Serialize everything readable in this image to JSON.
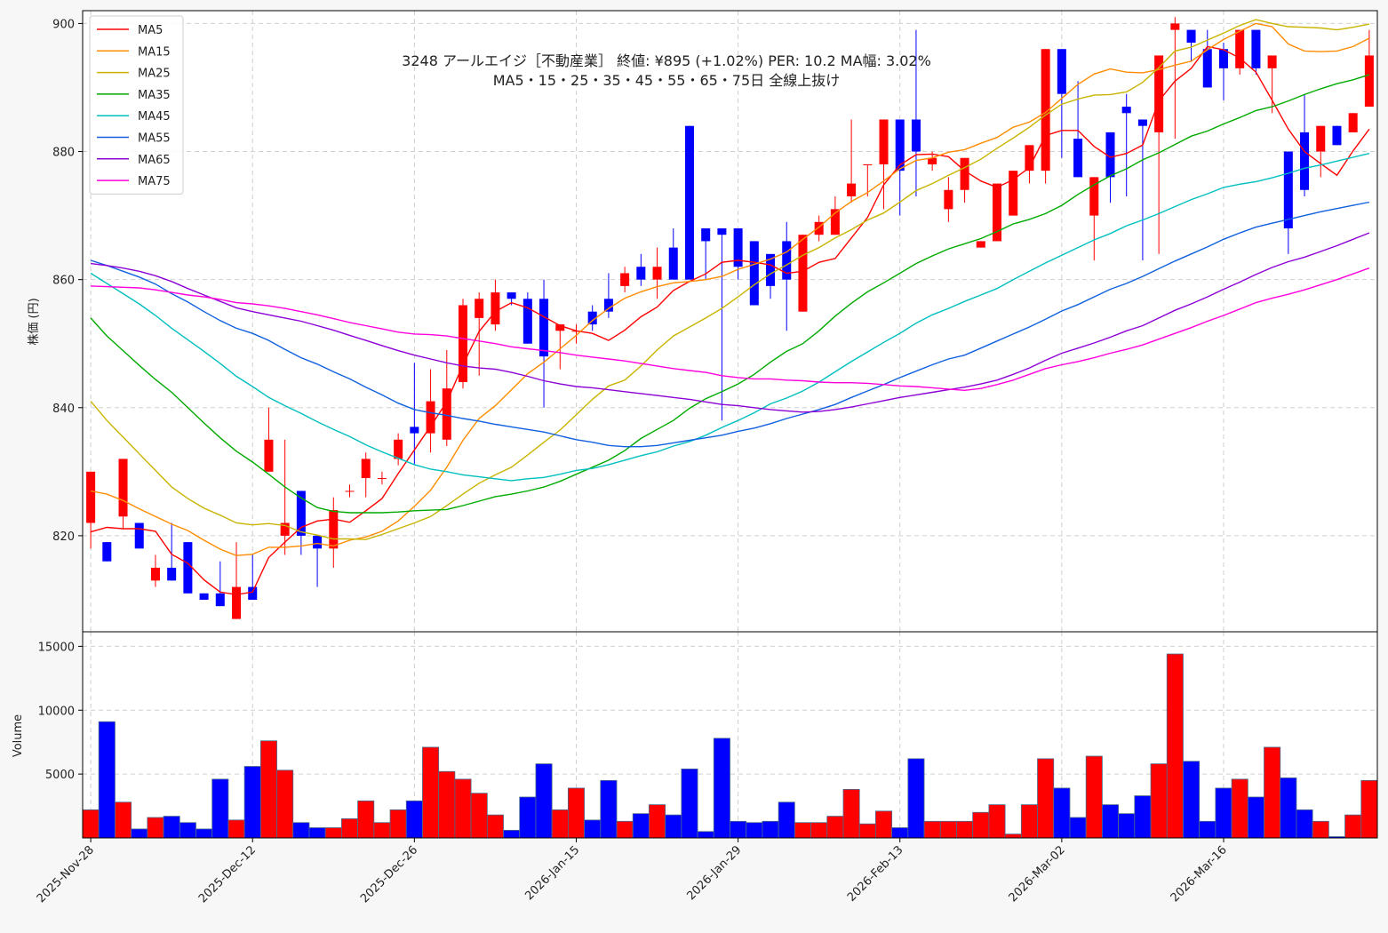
{
  "chart_data": {
    "type": "candlestick",
    "title_line1": "3248  アールエイジ［不動産業］ 終値: ¥895 (+1.02%)  PER: 10.2  MA幅: 3.02%",
    "title_line2": "MA5・15・25・35・45・55・65・75日 全線上抜け",
    "ylabel": "株価 (円)",
    "volume_ylabel": "Volume",
    "price_ylim": [
      805,
      902
    ],
    "price_ticks": [
      820,
      840,
      860,
      880,
      900
    ],
    "volume_ylim": [
      0,
      16000
    ],
    "volume_ticks": [
      5000,
      10000,
      15000
    ],
    "x_tick_labels": [
      {
        "index": 0,
        "label": "2025-Nov-28"
      },
      {
        "index": 10,
        "label": "2025-Dec-12"
      },
      {
        "index": 20,
        "label": "2025-Dec-26"
      },
      {
        "index": 30,
        "label": "2026-Jan-15"
      },
      {
        "index": 40,
        "label": "2026-Jan-29"
      },
      {
        "index": 50,
        "label": "2026-Feb-13"
      },
      {
        "index": 60,
        "label": "2026-Mar-02"
      },
      {
        "index": 70,
        "label": "2026-Mar-16"
      }
    ],
    "grid": true,
    "legend_position": "top-left",
    "up_color": "#ff0000",
    "down_color": "#0000ff",
    "candles": [
      [
        822,
        830,
        818,
        830
      ],
      [
        819,
        819,
        816,
        816
      ],
      [
        823,
        832,
        821,
        832
      ],
      [
        822,
        822,
        818,
        818
      ],
      [
        813,
        817,
        812,
        815
      ],
      [
        815,
        822,
        813,
        813
      ],
      [
        819,
        819,
        811,
        811
      ],
      [
        811,
        811,
        810,
        810
      ],
      [
        811,
        816,
        809,
        809
      ],
      [
        807,
        819,
        807,
        812
      ],
      [
        812,
        817,
        810,
        810
      ],
      [
        830,
        840,
        830,
        835
      ],
      [
        820,
        835,
        817,
        822
      ],
      [
        827,
        827,
        817,
        820
      ],
      [
        820,
        820,
        812,
        818
      ],
      [
        818,
        826,
        815,
        824
      ],
      [
        827,
        828,
        826,
        827
      ],
      [
        829,
        833,
        826,
        832
      ],
      [
        829,
        830,
        828,
        829
      ],
      [
        832,
        836,
        831,
        835
      ],
      [
        837,
        847,
        831,
        836
      ],
      [
        836,
        846,
        833,
        841
      ],
      [
        835,
        849,
        834,
        843
      ],
      [
        844,
        857,
        843,
        856
      ],
      [
        854,
        858,
        845,
        857
      ],
      [
        853,
        860,
        852,
        858
      ],
      [
        858,
        858,
        856,
        857
      ],
      [
        857,
        858,
        850,
        850
      ],
      [
        857,
        860,
        840,
        848
      ],
      [
        852,
        853,
        846,
        853
      ],
      [
        852,
        853,
        850,
        852
      ],
      [
        855,
        856,
        852,
        853
      ],
      [
        857,
        861,
        854,
        855
      ],
      [
        859,
        862,
        858,
        861
      ],
      [
        862,
        864,
        859,
        860
      ],
      [
        860,
        865,
        857,
        862
      ],
      [
        865,
        868,
        860,
        860
      ],
      [
        884,
        884,
        860,
        860
      ],
      [
        868,
        868,
        860,
        866
      ],
      [
        868,
        868,
        838,
        867
      ],
      [
        868,
        868,
        860,
        862
      ],
      [
        866,
        866,
        856,
        856
      ],
      [
        864,
        864,
        857,
        859
      ],
      [
        866,
        869,
        852,
        860
      ],
      [
        855,
        867,
        855,
        867
      ],
      [
        867,
        870,
        866,
        869
      ],
      [
        867,
        873,
        867,
        871
      ],
      [
        873,
        885,
        872,
        875
      ],
      [
        878,
        878,
        873,
        878
      ],
      [
        878,
        885,
        871,
        885
      ],
      [
        885,
        885,
        870,
        877
      ],
      [
        885,
        899,
        873,
        880
      ],
      [
        878,
        880,
        877,
        879
      ],
      [
        871,
        876,
        869,
        874
      ],
      [
        874,
        879,
        872,
        879
      ],
      [
        865,
        866,
        865,
        866
      ],
      [
        866,
        875,
        866,
        875
      ],
      [
        870,
        877,
        870,
        877
      ],
      [
        877,
        881,
        875,
        881
      ],
      [
        877,
        896,
        875,
        896
      ],
      [
        896,
        896,
        879,
        889
      ],
      [
        882,
        891,
        876,
        876
      ],
      [
        870,
        876,
        863,
        876
      ],
      [
        883,
        883,
        872,
        876
      ],
      [
        887,
        889,
        873,
        886
      ],
      [
        885,
        885,
        863,
        884
      ],
      [
        883,
        895,
        864,
        895
      ],
      [
        899,
        901,
        882,
        900
      ],
      [
        899,
        899,
        894,
        897
      ],
      [
        896,
        899,
        890,
        890
      ],
      [
        896,
        897,
        888,
        893
      ],
      [
        893,
        899,
        892,
        899
      ],
      [
        899,
        899,
        892,
        893
      ],
      [
        893,
        895,
        886,
        895
      ],
      [
        880,
        880,
        864,
        868
      ],
      [
        883,
        889,
        873,
        874
      ],
      [
        880,
        884,
        876,
        884
      ],
      [
        884,
        884,
        881,
        881
      ],
      [
        883,
        886,
        883,
        886
      ],
      [
        887,
        899,
        887,
        895
      ]
    ],
    "volume": [
      2200,
      9100,
      2800,
      700,
      1600,
      1700,
      1200,
      700,
      4600,
      1400,
      5600,
      7600,
      5300,
      1200,
      800,
      800,
      1500,
      2900,
      1200,
      2200,
      2900,
      7100,
      5200,
      4600,
      3500,
      1800,
      600,
      3200,
      5800,
      2200,
      3900,
      1400,
      4500,
      1300,
      1900,
      2600,
      1800,
      5400,
      500,
      7800,
      1300,
      1200,
      1300,
      2800,
      1200,
      1200,
      1700,
      3800,
      1100,
      2100,
      800,
      6200,
      1300,
      1300,
      1300,
      2000,
      2600,
      300,
      2600,
      6200,
      3900,
      1600,
      6400,
      2600,
      1900,
      3300,
      5800,
      14400,
      6000,
      1300,
      3900,
      4600,
      3200,
      7100,
      4700,
      2200,
      1300,
      100,
      1800,
      4500
    ],
    "series": [
      {
        "name": "MA5",
        "color": "#ff0000",
        "values": [
          820.6,
          821.3,
          821.1,
          821.1,
          820.7,
          817.1,
          815.7,
          813.1,
          811.2,
          810.8,
          811.2,
          816.6,
          819.0,
          821.3,
          822.3,
          822.6,
          822.1,
          823.9,
          825.8,
          829.7,
          833.4,
          837.1,
          840.9,
          846.7,
          851.9,
          855.0,
          856.4,
          855.6,
          854.2,
          852.8,
          852.0,
          851.6,
          850.5,
          852.1,
          854.2,
          855.7,
          858.3,
          859.7,
          860.9,
          862.7,
          863.0,
          862.7,
          862.3,
          861.0,
          861.3,
          862.7,
          863.3,
          866.5,
          869.7,
          874.8,
          877.9,
          879.5,
          879.6,
          879.2,
          877.0,
          875.4,
          874.4,
          875.6,
          877.5,
          882.5,
          883.3,
          883.3,
          880.8,
          879.1,
          879.7,
          881.0,
          887.9,
          891.0,
          893.0,
          896.4,
          895.9,
          894.6,
          892.4,
          888.0,
          883.5,
          880.0,
          878.1,
          876.3,
          880.1,
          883.5
        ]
      },
      {
        "name": "MA15",
        "color": "#ff8c00",
        "values": [
          827,
          826.5,
          825.5,
          824.2,
          823,
          821.8,
          820.8,
          819.3,
          817.9,
          816.9,
          817.1,
          818.2,
          818.2,
          818.4,
          818.8,
          818.4,
          819.3,
          819.8,
          820.7,
          822.3,
          824.6,
          827.1,
          830.7,
          834.9,
          838.3,
          840.3,
          842.8,
          845.3,
          847.1,
          849.2,
          851.3,
          853.6,
          855.5,
          857.1,
          858.1,
          858.9,
          859.5,
          859.7,
          860.0,
          860.5,
          861.6,
          862.4,
          863.2,
          864.3,
          866.3,
          868.2,
          870.4,
          872.2,
          873.6,
          875.4,
          877.3,
          878.6,
          879.0,
          879.9,
          880.3,
          881.3,
          882.2,
          883.8,
          884.6,
          886.1,
          888.3,
          890.5,
          892.1,
          892.9,
          892.4,
          892.3,
          892.8,
          893.5,
          894.1,
          895.9,
          897.5,
          898.8,
          900.0,
          899.5,
          896.8,
          895.7,
          895.6,
          895.7,
          896.4,
          897.7
        ]
      },
      {
        "name": "MA25",
        "color": "#c8b400",
        "values": [
          841,
          838.0,
          835.4,
          832.8,
          830.2,
          827.6,
          825.8,
          824.3,
          823.2,
          822.0,
          821.7,
          821.9,
          821.6,
          820.6,
          820.1,
          819.5,
          819.5,
          819.4,
          820.2,
          821.1,
          822.0,
          823.0,
          824.7,
          826.5,
          828.2,
          829.5,
          830.7,
          832.6,
          834.6,
          836.5,
          838.9,
          841.3,
          843.4,
          844.3,
          846.5,
          849.0,
          851.2,
          852.6,
          854.0,
          855.5,
          857.3,
          859.2,
          860.9,
          862.3,
          863.8,
          865.0,
          866.5,
          867.8,
          869.3,
          870.4,
          872.1,
          873.9,
          875.0,
          876.3,
          877.5,
          878.8,
          880.5,
          882.1,
          883.8,
          885.7,
          887.4,
          888.2,
          888.8,
          888.9,
          889.3,
          890.8,
          893.1,
          895.7,
          896.3,
          897.4,
          898.5,
          899.7,
          900.6,
          900.0,
          899.5,
          899.4,
          899.3,
          899.0,
          899.4,
          899.9
        ]
      },
      {
        "name": "MA35",
        "color": "#00aa00",
        "values": [
          854,
          851.2,
          848.9,
          846.6,
          844.4,
          842.4,
          840.0,
          837.6,
          835.3,
          833.2,
          831.5,
          829.6,
          827.6,
          825.9,
          824.4,
          823.8,
          823.6,
          823.6,
          823.6,
          823.7,
          823.9,
          824.0,
          824.1,
          824.7,
          825.4,
          826.1,
          826.5,
          827.0,
          827.6,
          828.5,
          829.6,
          830.7,
          831.8,
          833.3,
          835.2,
          836.6,
          838.0,
          839.9,
          841.4,
          842.5,
          843.7,
          845.2,
          847.1,
          848.8,
          850.0,
          852.0,
          854.3,
          856.3,
          858.1,
          859.5,
          861.0,
          862.5,
          863.7,
          864.8,
          865.6,
          866.4,
          867.5,
          868.7,
          869.4,
          870.3,
          871.6,
          873.3,
          874.8,
          876.2,
          877.3,
          878.7,
          879.8,
          881.1,
          882.4,
          883.2,
          884.3,
          885.3,
          886.4,
          887.0,
          887.9,
          888.9,
          889.8,
          890.6,
          891.2,
          892.0
        ]
      },
      {
        "name": "MA45",
        "color": "#00bfbf",
        "values": [
          861,
          859.4,
          857.8,
          856.2,
          854.4,
          852.4,
          850.6,
          848.8,
          846.9,
          844.9,
          843.3,
          841.6,
          840.3,
          839.1,
          837.8,
          836.6,
          835.5,
          834.2,
          833.1,
          832.1,
          831.1,
          830.4,
          830.0,
          829.5,
          829.2,
          828.9,
          828.6,
          828.9,
          829.1,
          829.6,
          830.2,
          830.5,
          831.1,
          831.8,
          832.5,
          833.1,
          834.0,
          834.7,
          835.7,
          836.9,
          838.0,
          839.2,
          840.6,
          841.5,
          842.6,
          844.0,
          845.6,
          847.2,
          848.7,
          850.2,
          851.6,
          853.2,
          854.5,
          855.5,
          856.6,
          857.6,
          858.6,
          860.0,
          861.3,
          862.6,
          863.8,
          865.0,
          866.2,
          867.2,
          868.4,
          869.3,
          870.3,
          871.4,
          872.5,
          873.4,
          874.4,
          874.9,
          875.3,
          875.9,
          876.6,
          877.4,
          877.9,
          878.5,
          879.1,
          879.7
        ]
      },
      {
        "name": "MA55",
        "color": "#1060e0",
        "values": [
          863,
          862.2,
          861.3,
          860.4,
          859.3,
          857.8,
          856.5,
          855.0,
          853.6,
          852.4,
          851.6,
          850.5,
          849.1,
          847.8,
          846.8,
          845.6,
          844.5,
          843.2,
          842.0,
          840.7,
          839.7,
          839.2,
          838.8,
          838.3,
          837.9,
          837.4,
          837.0,
          836.6,
          836.2,
          835.6,
          835.0,
          834.6,
          834.1,
          833.9,
          833.9,
          834.1,
          834.5,
          834.9,
          835.3,
          835.7,
          836.3,
          836.8,
          837.5,
          838.3,
          839.0,
          839.7,
          840.5,
          841.6,
          842.6,
          843.6,
          844.7,
          845.7,
          846.7,
          847.6,
          848.2,
          849.3,
          850.4,
          851.5,
          852.6,
          853.8,
          855.1,
          856.1,
          857.3,
          858.5,
          859.4,
          860.5,
          861.7,
          862.9,
          864.0,
          865.1,
          866.3,
          867.3,
          868.2,
          868.8,
          869.4,
          870.0,
          870.6,
          871.1,
          871.6,
          872.1
        ]
      },
      {
        "name": "MA65",
        "color": "#8c00d6",
        "values": [
          862.5,
          862.2,
          861.8,
          861.3,
          860.6,
          859.7,
          858.6,
          857.6,
          856.6,
          855.6,
          855.0,
          854.5,
          854.0,
          853.5,
          852.8,
          852.1,
          851.3,
          850.5,
          849.7,
          848.9,
          848.2,
          847.6,
          847.0,
          846.5,
          846.2,
          846.0,
          845.5,
          844.9,
          844.2,
          843.7,
          843.3,
          843.1,
          842.8,
          842.5,
          842.2,
          841.9,
          841.6,
          841.3,
          840.9,
          840.5,
          840.3,
          840.0,
          839.7,
          839.5,
          839.3,
          839.4,
          839.7,
          840.1,
          840.6,
          841.1,
          841.6,
          842.0,
          842.4,
          842.8,
          843.2,
          843.7,
          844.3,
          845.2,
          846.2,
          847.4,
          848.5,
          849.3,
          850.1,
          851.0,
          852.0,
          852.8,
          854.0,
          855.2,
          856.2,
          857.3,
          858.5,
          859.6,
          860.8,
          861.9,
          862.8,
          863.5,
          864.4,
          865.3,
          866.3,
          867.3
        ]
      },
      {
        "name": "MA75",
        "color": "#ff00dd",
        "values": [
          859,
          858.9,
          858.8,
          858.7,
          858.4,
          858.0,
          857.6,
          857.3,
          856.9,
          856.4,
          856.2,
          855.9,
          855.5,
          855.0,
          854.5,
          853.9,
          853.3,
          852.8,
          852.3,
          851.8,
          851.5,
          851.4,
          851.2,
          850.8,
          850.4,
          850.0,
          849.5,
          849.2,
          848.9,
          848.6,
          848.2,
          847.9,
          847.6,
          847.3,
          846.9,
          846.5,
          846.1,
          845.8,
          845.5,
          845.0,
          844.7,
          844.5,
          844.5,
          844.3,
          844.2,
          844.0,
          843.9,
          843.9,
          843.8,
          843.6,
          843.4,
          843.3,
          843.1,
          842.9,
          842.7,
          843.0,
          843.6,
          844.3,
          845.2,
          846.1,
          846.7,
          847.2,
          847.8,
          848.5,
          849.1,
          849.8,
          850.7,
          851.6,
          852.5,
          853.5,
          854.4,
          855.4,
          856.4,
          857.1,
          857.7,
          858.4,
          859.2,
          860.0,
          860.9,
          861.8
        ]
      }
    ]
  }
}
